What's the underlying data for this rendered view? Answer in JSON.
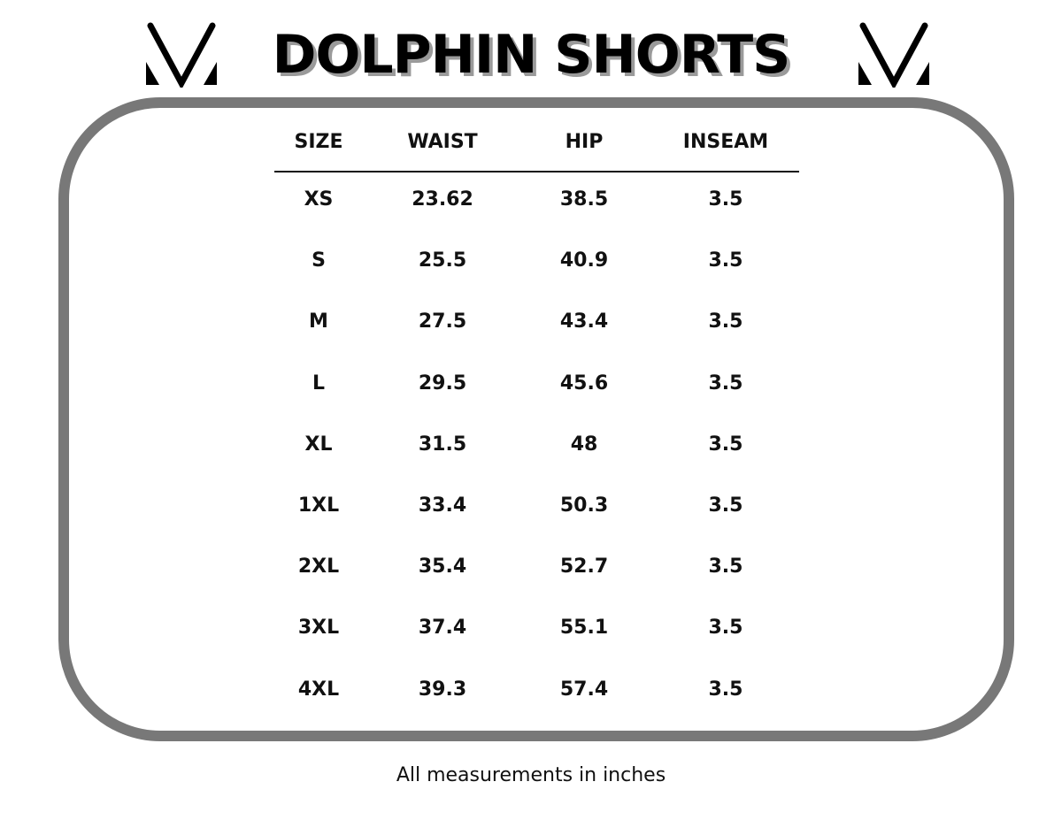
{
  "title": "DOLPHIN SHORTS",
  "logo": "V-logo",
  "table": {
    "headers": [
      "SIZE",
      "WAIST",
      "HIP",
      "INSEAM"
    ],
    "rows": [
      [
        "XS",
        "23.62",
        "38.5",
        "3.5"
      ],
      [
        "S",
        "25.5",
        "40.9",
        "3.5"
      ],
      [
        "M",
        "27.5",
        "43.4",
        "3.5"
      ],
      [
        "L",
        "29.5",
        "45.6",
        "3.5"
      ],
      [
        "XL",
        "31.5",
        "48",
        "3.5"
      ],
      [
        "1XL",
        "33.4",
        "50.3",
        "3.5"
      ],
      [
        "2XL",
        "35.4",
        "52.7",
        "3.5"
      ],
      [
        "3XL",
        "37.4",
        "55.1",
        "3.5"
      ],
      [
        "4XL",
        "39.3",
        "57.4",
        "3.5"
      ]
    ]
  },
  "note": "All measurements in inches",
  "colors": {
    "frame": "#787878",
    "text": "#111111",
    "title_shadow": "#9a9a9a"
  }
}
